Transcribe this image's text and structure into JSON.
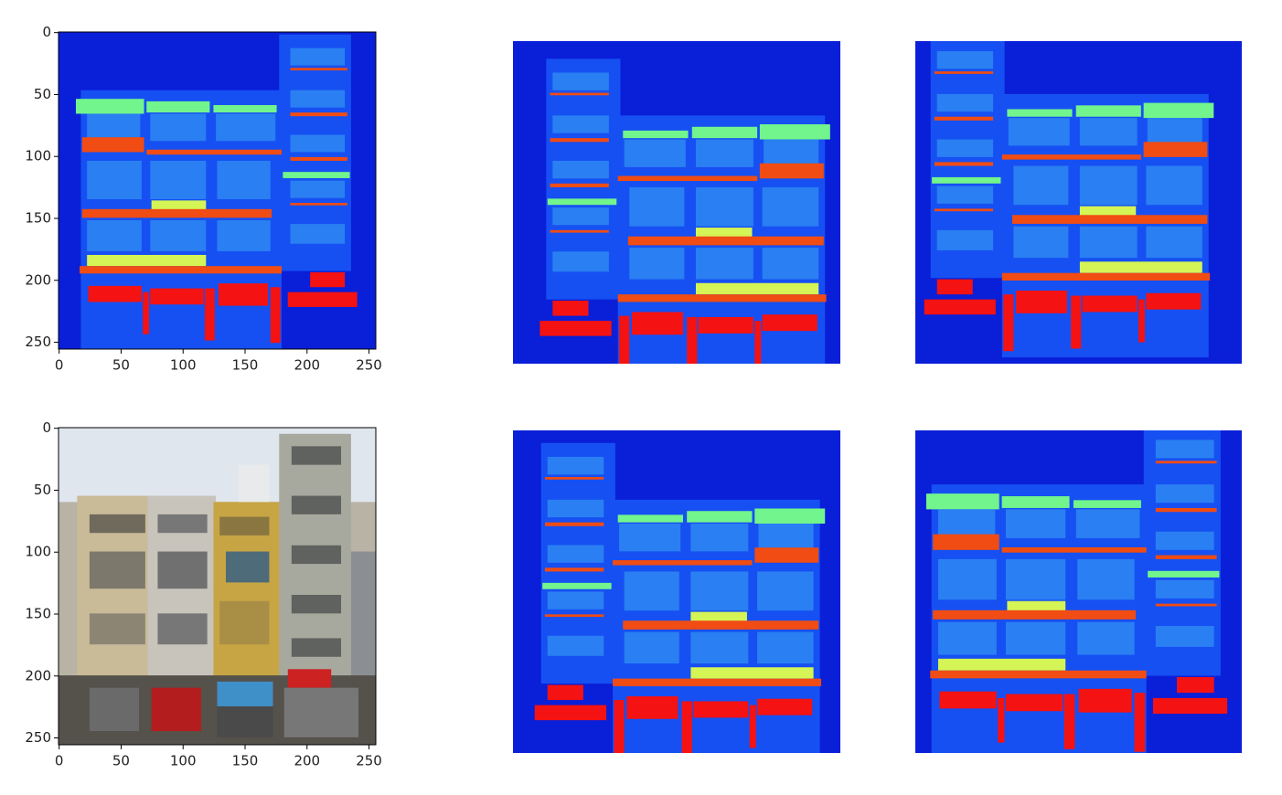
{
  "panels": [
    {
      "xlim": [
        -0.5,
        255.5
      ],
      "ylim": [
        255.5,
        -0.5
      ],
      "xticks": [
        0,
        50,
        100,
        150,
        200,
        250
      ],
      "yticks": [
        0,
        50,
        100,
        150,
        200,
        250
      ]
    },
    {
      "xlim": [
        -0.5,
        255.5
      ],
      "ylim": [
        255.5,
        -0.5
      ],
      "xticks": [
        0,
        50,
        100,
        150,
        200,
        250
      ],
      "yticks": [
        0,
        50,
        100,
        150,
        200,
        250
      ]
    }
  ]
}
